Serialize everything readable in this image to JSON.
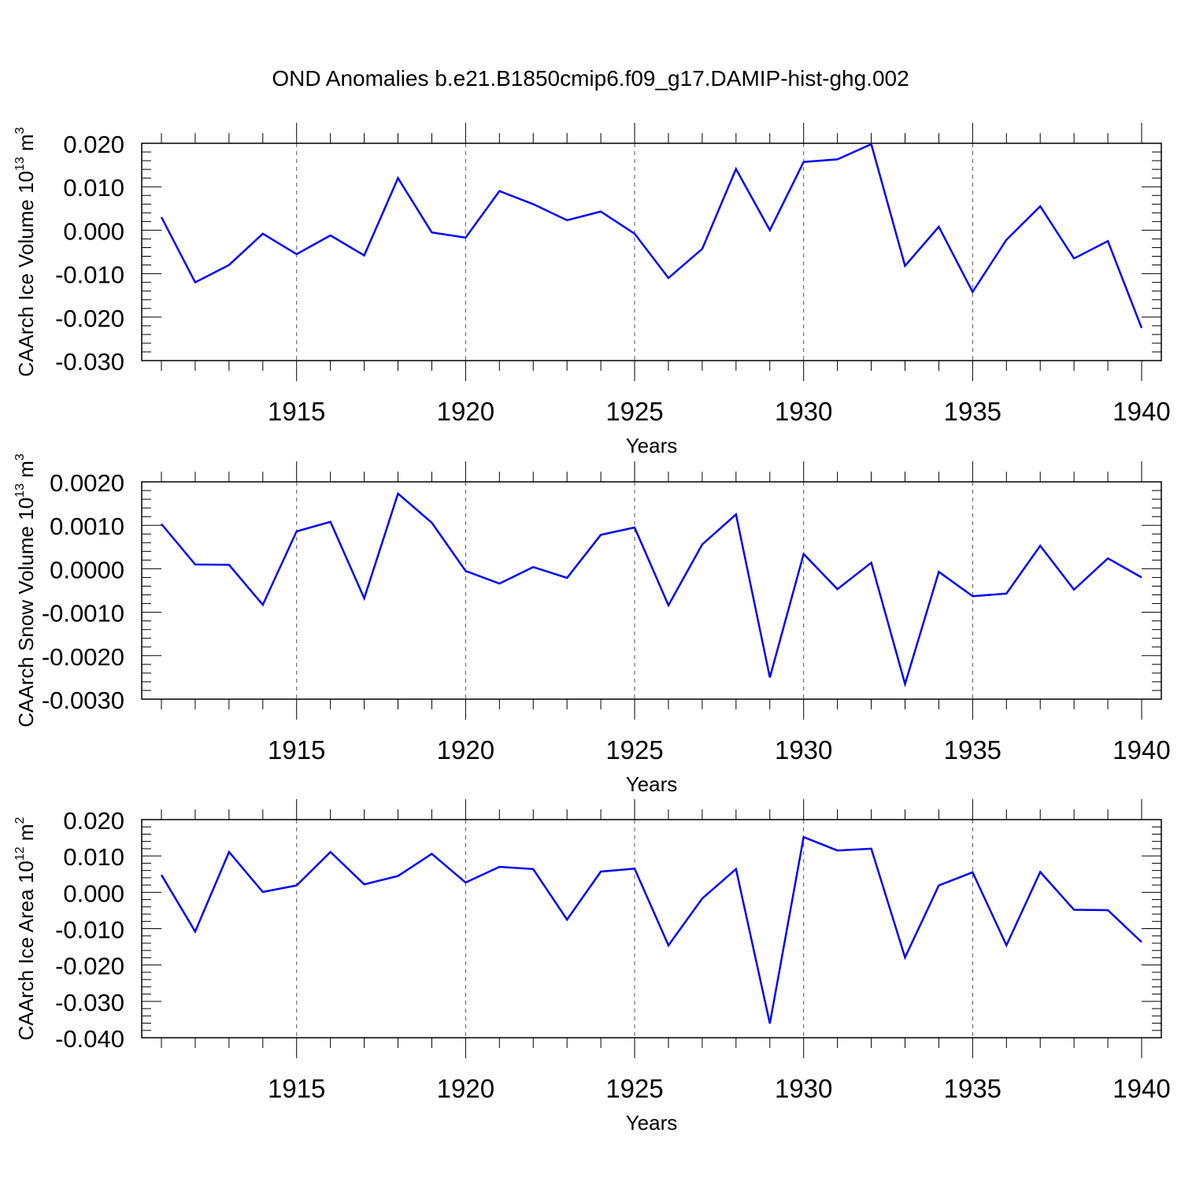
{
  "title": "OND Anomalies b.e21.B1850cmip6.f09_g17.DAMIP-hist-ghg.002",
  "line_color": "#0000ff",
  "chart_data": [
    {
      "type": "line",
      "xlabel": "Years",
      "ylabel": "CAArch Ice Volume 10",
      "ylabel_exp": "13",
      "ylabel_unit": "m",
      "ylabel_unit_exp": "3",
      "xlim": [
        1911,
        1940
      ],
      "ylim": [
        -0.03,
        0.02
      ],
      "xticks": [
        1915,
        1920,
        1925,
        1930,
        1935,
        1940
      ],
      "yticks": [
        0.02,
        0.01,
        0.0,
        -0.01,
        -0.02,
        -0.03
      ],
      "ytick_labels": [
        "0.020",
        "0.010",
        "0.000",
        "-0.010",
        "-0.020",
        "-0.030"
      ],
      "x": [
        1911,
        1912,
        1913,
        1914,
        1915,
        1916,
        1917,
        1918,
        1919,
        1920,
        1921,
        1922,
        1923,
        1924,
        1925,
        1926,
        1927,
        1928,
        1929,
        1930,
        1931,
        1932,
        1933,
        1934,
        1935,
        1936,
        1937,
        1938,
        1939,
        1940
      ],
      "values": [
        0.003,
        -0.012,
        -0.008,
        -0.0008,
        -0.0055,
        -0.0012,
        -0.0058,
        0.012,
        -0.0005,
        -0.0017,
        0.009,
        0.006,
        0.0023,
        0.0043,
        -0.0008,
        -0.011,
        -0.0043,
        0.0141,
        0.0,
        0.0157,
        0.0163,
        0.0198,
        -0.0082,
        0.0008,
        -0.0142,
        -0.0022,
        0.0055,
        -0.0065,
        -0.0025,
        -0.0225
      ],
      "grid": "vertical dashed at major x ticks"
    },
    {
      "type": "line",
      "xlabel": "Years",
      "ylabel": "CAArch Snow Volume 10",
      "ylabel_exp": "13",
      "ylabel_unit": "m",
      "ylabel_unit_exp": "3",
      "xlim": [
        1911,
        1940
      ],
      "ylim": [
        -0.003,
        0.002
      ],
      "xticks": [
        1915,
        1920,
        1925,
        1930,
        1935,
        1940
      ],
      "yticks": [
        0.002,
        0.001,
        0.0,
        -0.001,
        -0.002,
        -0.003
      ],
      "ytick_labels": [
        "0.0020",
        "0.0010",
        "0.0000",
        "-0.0010",
        "-0.0020",
        "-0.0030"
      ],
      "x": [
        1911,
        1912,
        1913,
        1914,
        1915,
        1916,
        1917,
        1918,
        1919,
        1920,
        1921,
        1922,
        1923,
        1924,
        1925,
        1926,
        1927,
        1928,
        1929,
        1930,
        1931,
        1932,
        1933,
        1934,
        1935,
        1936,
        1937,
        1938,
        1939,
        1940
      ],
      "values": [
        0.00103,
        0.0001,
        9e-05,
        -0.00083,
        0.00086,
        0.00108,
        -0.00068,
        0.00173,
        0.00106,
        -5e-05,
        -0.00034,
        4e-05,
        -0.00021,
        0.00078,
        0.00095,
        -0.00084,
        0.00056,
        0.00125,
        -0.0025,
        0.00034,
        -0.00047,
        0.00014,
        -0.00265,
        -7e-05,
        -0.00063,
        -0.00057,
        0.00053,
        -0.00048,
        0.00024,
        -0.0002
      ],
      "grid": "vertical dashed at major x ticks"
    },
    {
      "type": "line",
      "xlabel": "Years",
      "ylabel": "CAArch Ice Area 10",
      "ylabel_exp": "12",
      "ylabel_unit": "m",
      "ylabel_unit_exp": "2",
      "xlim": [
        1911,
        1940
      ],
      "ylim": [
        -0.04,
        0.02
      ],
      "xticks": [
        1915,
        1920,
        1925,
        1930,
        1935,
        1940
      ],
      "yticks": [
        0.02,
        0.01,
        0.0,
        -0.01,
        -0.02,
        -0.03,
        -0.04
      ],
      "ytick_labels": [
        "0.020",
        "0.010",
        "0.000",
        "-0.010",
        "-0.020",
        "-0.030",
        "-0.040"
      ],
      "x": [
        1911,
        1912,
        1913,
        1914,
        1915,
        1916,
        1917,
        1918,
        1919,
        1920,
        1921,
        1922,
        1923,
        1924,
        1925,
        1926,
        1927,
        1928,
        1929,
        1930,
        1931,
        1932,
        1933,
        1934,
        1935,
        1936,
        1937,
        1938,
        1939,
        1940
      ],
      "values": [
        0.0048,
        -0.0108,
        0.0111,
        0.0001,
        0.0019,
        0.0111,
        0.0022,
        0.0045,
        0.0106,
        0.0027,
        0.007,
        0.0064,
        -0.0075,
        0.0057,
        0.0065,
        -0.0146,
        -0.0017,
        0.0064,
        -0.0361,
        0.0152,
        0.0115,
        0.012,
        -0.0179,
        0.0019,
        0.0055,
        -0.0146,
        0.0056,
        -0.0048,
        -0.0049,
        -0.0137
      ],
      "grid": "vertical dashed at major x ticks"
    }
  ]
}
